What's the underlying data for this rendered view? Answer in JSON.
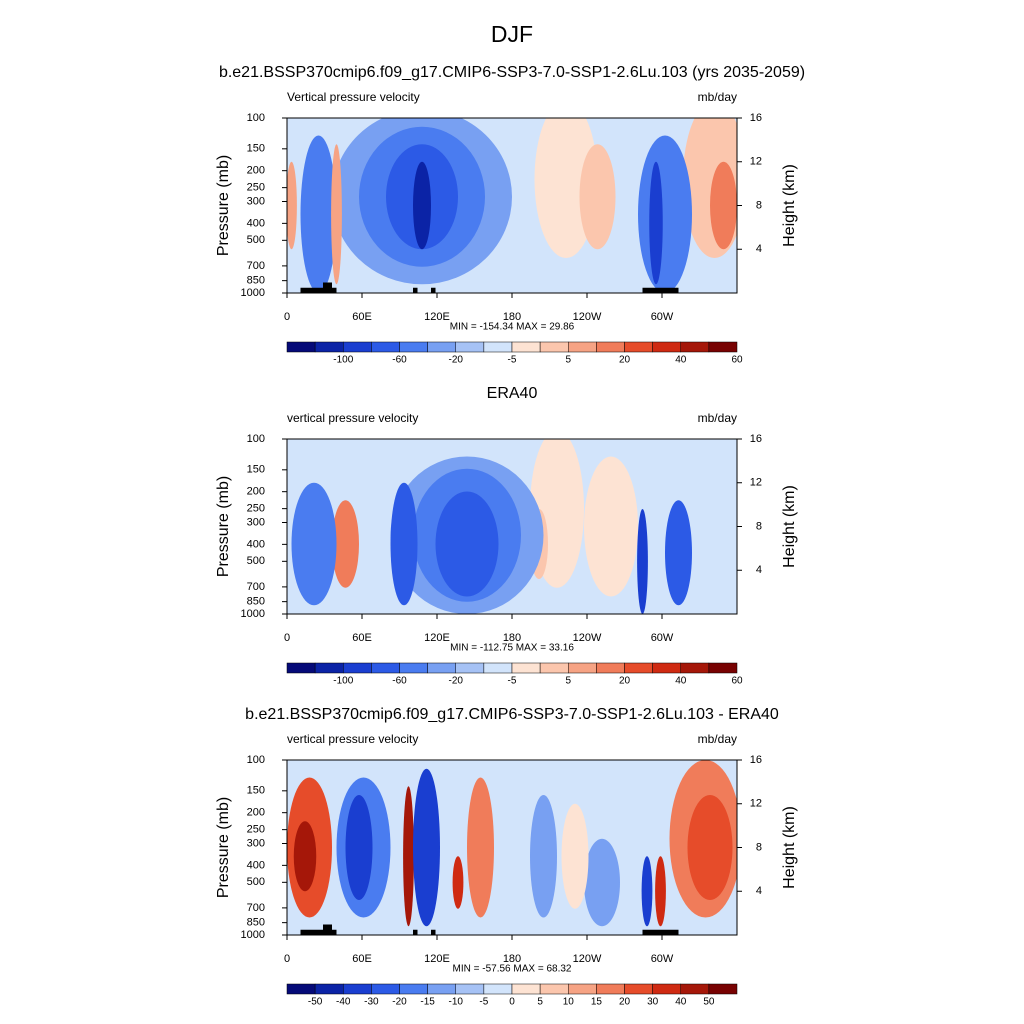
{
  "title": "DJF",
  "chart_data": [
    {
      "type": "contour",
      "title": "b.e21.BSSP370cmip6.f09_g17.CMIP6-SSP3-7.0-SSP1-2.6Lu.103 (yrs 2035-2059)",
      "left_label": "Vertical pressure velocity",
      "right_label": "mb/day",
      "ylabel": "Pressure (mb)",
      "y2label": "Height (km)",
      "stats": "MIN = -154.34  MAX =  29.86",
      "ylog": true,
      "ylim": [
        1000,
        100
      ],
      "yticks": [
        100,
        150,
        200,
        250,
        300,
        400,
        500,
        700,
        850,
        1000
      ],
      "y2lim": [
        0,
        16
      ],
      "y2ticks": [
        4,
        8,
        12,
        16
      ],
      "xlim": [
        0,
        360
      ],
      "xticks": [
        0,
        {
          "value": 60,
          "label": "60E"
        },
        {
          "value": 120,
          "label": "120E"
        },
        180,
        {
          "value": 240,
          "label": "120W"
        },
        {
          "value": 300,
          "label": "60W"
        }
      ],
      "colors": [
        "#050a78",
        "#0b23a6",
        "#1a3ed0",
        "#2c5ae6",
        "#4a7cf0",
        "#78a0f2",
        "#a6c2f5",
        "#d2e4fb",
        "#fde3d3",
        "#fbc6ad",
        "#f6a384",
        "#f07c5a",
        "#e64c2a",
        "#cf2a12",
        "#a51709",
        "#780202"
      ],
      "colorbar_labels": [
        "-100",
        "-60",
        "-20",
        "-5",
        "5",
        "20",
        "40",
        "60"
      ],
      "label_every": 2
    },
    {
      "type": "contour",
      "title": "ERA40",
      "left_label": "vertical pressure velocity",
      "right_label": "mb/day",
      "ylabel": "Pressure (mb)",
      "y2label": "Height (km)",
      "stats": "MIN = -112.75  MAX =  33.16",
      "ylog": true,
      "ylim": [
        1000,
        100
      ],
      "yticks": [
        100,
        150,
        200,
        250,
        300,
        400,
        500,
        700,
        850,
        1000
      ],
      "y2lim": [
        0,
        16
      ],
      "y2ticks": [
        4,
        8,
        12,
        16
      ],
      "xlim": [
        0,
        360
      ],
      "xticks": [
        0,
        {
          "value": 60,
          "label": "60E"
        },
        {
          "value": 120,
          "label": "120E"
        },
        180,
        {
          "value": 240,
          "label": "120W"
        },
        {
          "value": 300,
          "label": "60W"
        }
      ],
      "colors": [
        "#050a78",
        "#0b23a6",
        "#1a3ed0",
        "#2c5ae6",
        "#4a7cf0",
        "#78a0f2",
        "#a6c2f5",
        "#d2e4fb",
        "#fde3d3",
        "#fbc6ad",
        "#f6a384",
        "#f07c5a",
        "#e64c2a",
        "#cf2a12",
        "#a51709",
        "#780202"
      ],
      "colorbar_labels": [
        "-100",
        "-60",
        "-20",
        "-5",
        "5",
        "20",
        "40",
        "60"
      ],
      "label_every": 2
    },
    {
      "type": "contour",
      "title": "b.e21.BSSP370cmip6.f09_g17.CMIP6-SSP3-7.0-SSP1-2.6Lu.103 - ERA40",
      "left_label": "vertical pressure velocity",
      "right_label": "mb/day",
      "ylabel": "Pressure (mb)",
      "y2label": "Height (km)",
      "stats": "MIN = -57.56  MAX =  68.32",
      "ylog": true,
      "ylim": [
        1000,
        100
      ],
      "yticks": [
        100,
        150,
        200,
        250,
        300,
        400,
        500,
        700,
        850,
        1000
      ],
      "y2lim": [
        0,
        16
      ],
      "y2ticks": [
        4,
        8,
        12,
        16
      ],
      "xlim": [
        0,
        360
      ],
      "xticks": [
        0,
        {
          "value": 60,
          "label": "60E"
        },
        {
          "value": 120,
          "label": "120E"
        },
        180,
        {
          "value": 240,
          "label": "120W"
        },
        {
          "value": 300,
          "label": "60W"
        }
      ],
      "colors": [
        "#050a78",
        "#0b23a6",
        "#1a3ed0",
        "#2c5ae6",
        "#4a7cf0",
        "#78a0f2",
        "#a6c2f5",
        "#d2e4fb",
        "#fde3d3",
        "#fbc6ad",
        "#f6a384",
        "#f07c5a",
        "#e64c2a",
        "#cf2a12",
        "#a51709",
        "#780202"
      ],
      "colorbar_labels": [
        "-50",
        "-40",
        "-30",
        "-20",
        "-15",
        "-10",
        "-5",
        "0",
        "5",
        "10",
        "15",
        "20",
        "30",
        "40",
        "50"
      ],
      "label_every": 1
    }
  ]
}
